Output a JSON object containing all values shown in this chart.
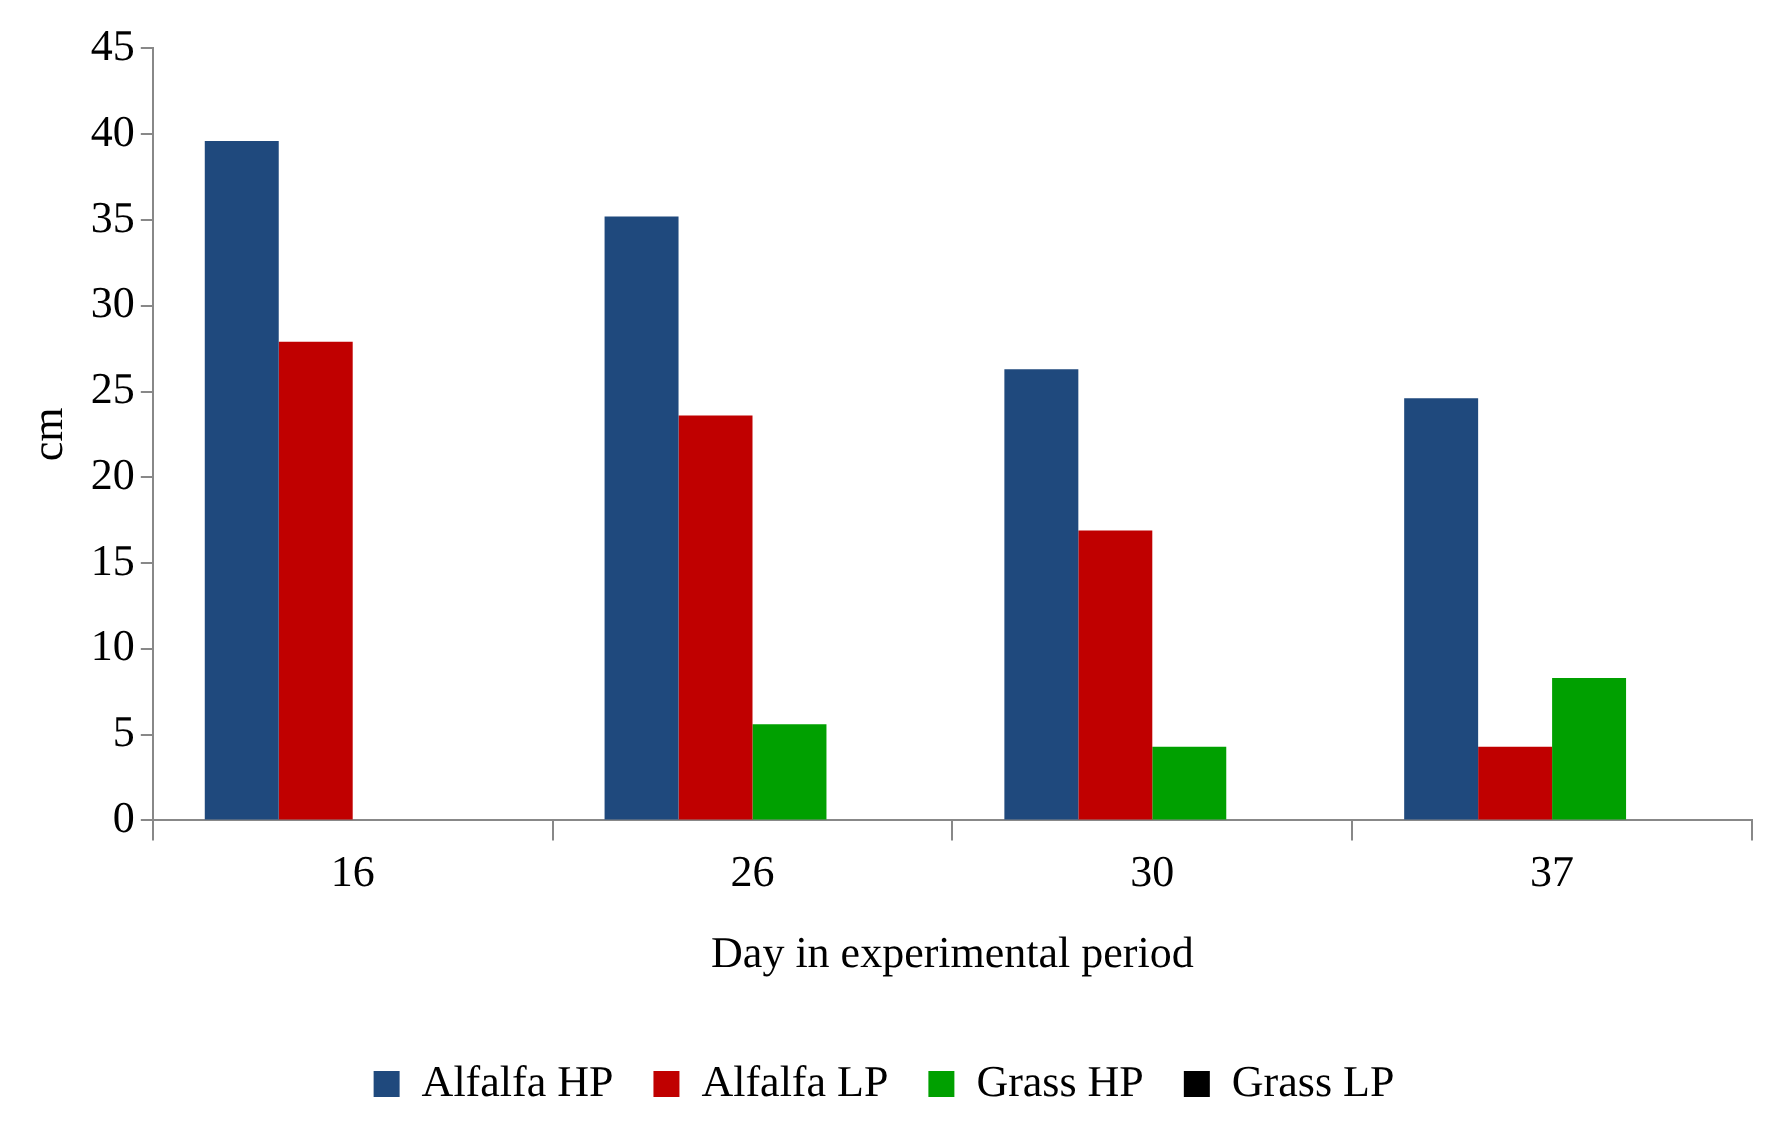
{
  "chart_data": {
    "type": "bar",
    "xlabel": "Day in experimental period",
    "ylabel": "cm",
    "categories": [
      "16",
      "26",
      "30",
      "37"
    ],
    "series": [
      {
        "name": "Alfalfa HP",
        "color": "#1f497d",
        "values": [
          39.6,
          35.2,
          26.3,
          24.6
        ]
      },
      {
        "name": "Alfalfa LP",
        "color": "#c00000",
        "values": [
          27.9,
          23.6,
          16.9,
          4.3
        ]
      },
      {
        "name": "Grass HP",
        "color": "#00a000",
        "values": [
          0,
          5.6,
          4.3,
          8.3
        ]
      },
      {
        "name": "Grass LP",
        "color": "#000000",
        "values": [
          0,
          0,
          0,
          0
        ]
      }
    ],
    "ylim": [
      0,
      45
    ],
    "yticks": [
      0,
      5,
      10,
      15,
      20,
      25,
      30,
      35,
      40,
      45
    ],
    "grid": false,
    "legend": "bottom"
  }
}
